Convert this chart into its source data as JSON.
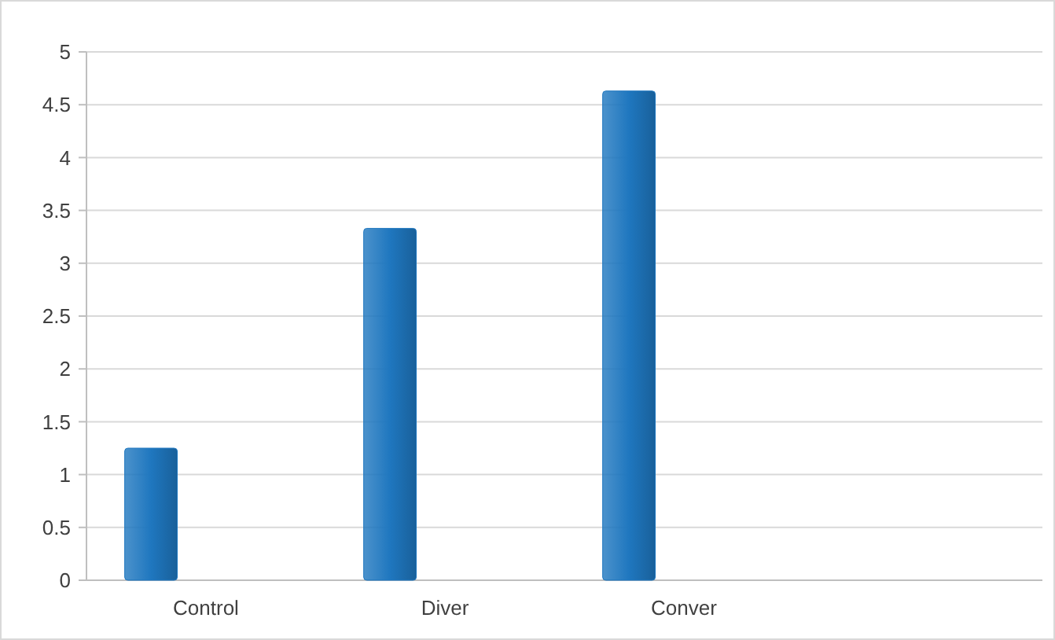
{
  "chart_data": {
    "type": "bar",
    "categories": [
      "Control",
      "Diver",
      "Conver",
      null
    ],
    "values": [
      1.25,
      3.33,
      4.63,
      null
    ],
    "color": "#1f77bf",
    "ylim": [
      0,
      5
    ],
    "yticks": [
      0,
      0.5,
      1,
      1.5,
      2,
      2.5,
      3,
      3.5,
      4,
      4.5,
      5
    ],
    "grid": "y"
  }
}
